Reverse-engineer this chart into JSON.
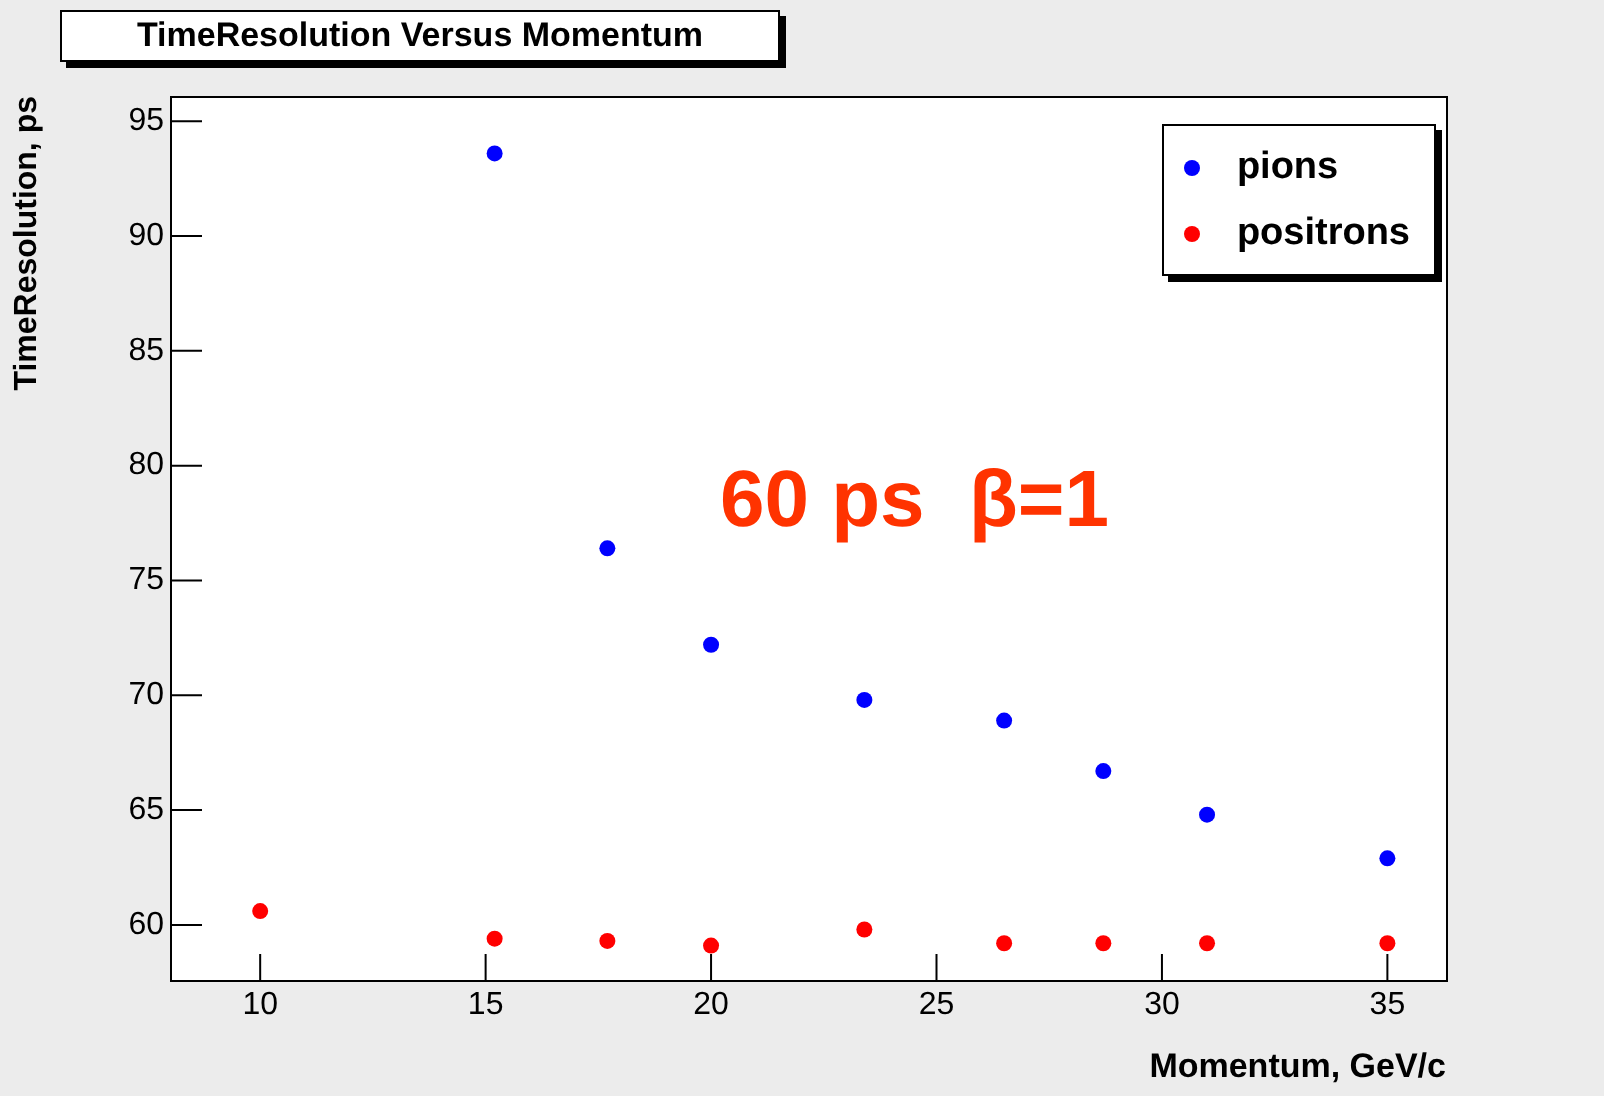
{
  "chart_data": {
    "type": "scatter",
    "title": "TimeResolution Versus Momentum",
    "xlabel": "Momentum, GeV/c",
    "ylabel": "TimeResolution, ps",
    "annotations": [
      "60 ps  β=1"
    ],
    "series": [
      {
        "name": "pions",
        "color": "#0000ff",
        "x": [
          15.2,
          17.7,
          20.0,
          23.4,
          26.5,
          28.7,
          31.0,
          35.0
        ],
        "values": [
          93.6,
          76.4,
          72.2,
          69.8,
          68.9,
          66.7,
          64.8,
          62.9
        ]
      },
      {
        "name": "positrons",
        "color": "#ff0000",
        "x": [
          10.0,
          15.2,
          17.7,
          20.0,
          23.4,
          26.5,
          28.7,
          31.0,
          35.0
        ],
        "values": [
          60.6,
          59.4,
          59.3,
          59.1,
          59.8,
          59.2,
          59.2,
          59.2,
          59.2
        ]
      }
    ],
    "xlim": [
      8,
      36.3
    ],
    "ylim": [
      57.6,
      96.1
    ],
    "xticks": [
      10,
      15,
      20,
      25,
      30,
      35
    ],
    "yticks": [
      60,
      65,
      70,
      75,
      80,
      85,
      90,
      95
    ],
    "marker": "circle",
    "legend": "top right",
    "grid": false
  }
}
